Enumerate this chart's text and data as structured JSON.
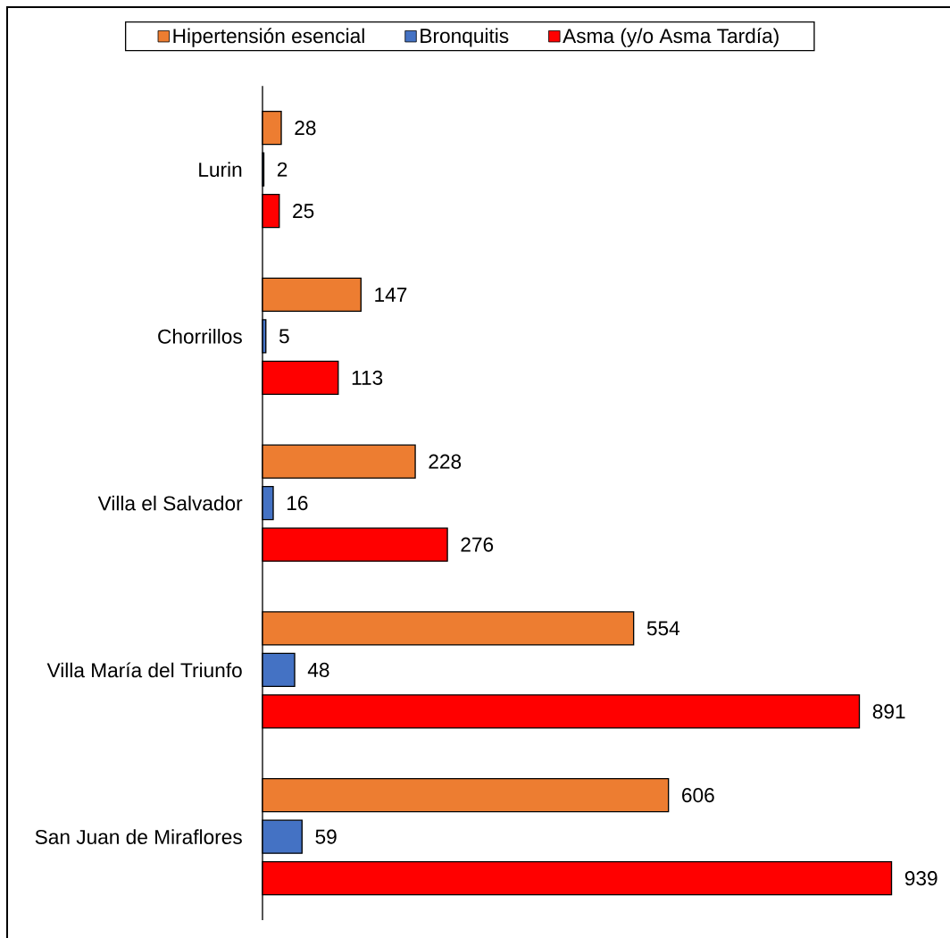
{
  "chart_data": {
    "type": "bar",
    "orientation": "horizontal",
    "categories": [
      "Lurin",
      "Chorrillos",
      "Villa el Salvador",
      "Villa María del Triunfo",
      "San Juan de Miraflores"
    ],
    "series": [
      {
        "name": "Hipertensión esencial",
        "color": "#ed7d31",
        "values": [
          28,
          147,
          228,
          554,
          606
        ]
      },
      {
        "name": "Bronquitis",
        "color": "#4472c4",
        "values": [
          2,
          5,
          16,
          48,
          59
        ]
      },
      {
        "name": "Asma (y/o Asma Tardía)",
        "color": "#ff0000",
        "values": [
          25,
          113,
          276,
          891,
          939
        ]
      }
    ],
    "data_labels": true,
    "legend": "top",
    "tick_labels": "y"
  }
}
